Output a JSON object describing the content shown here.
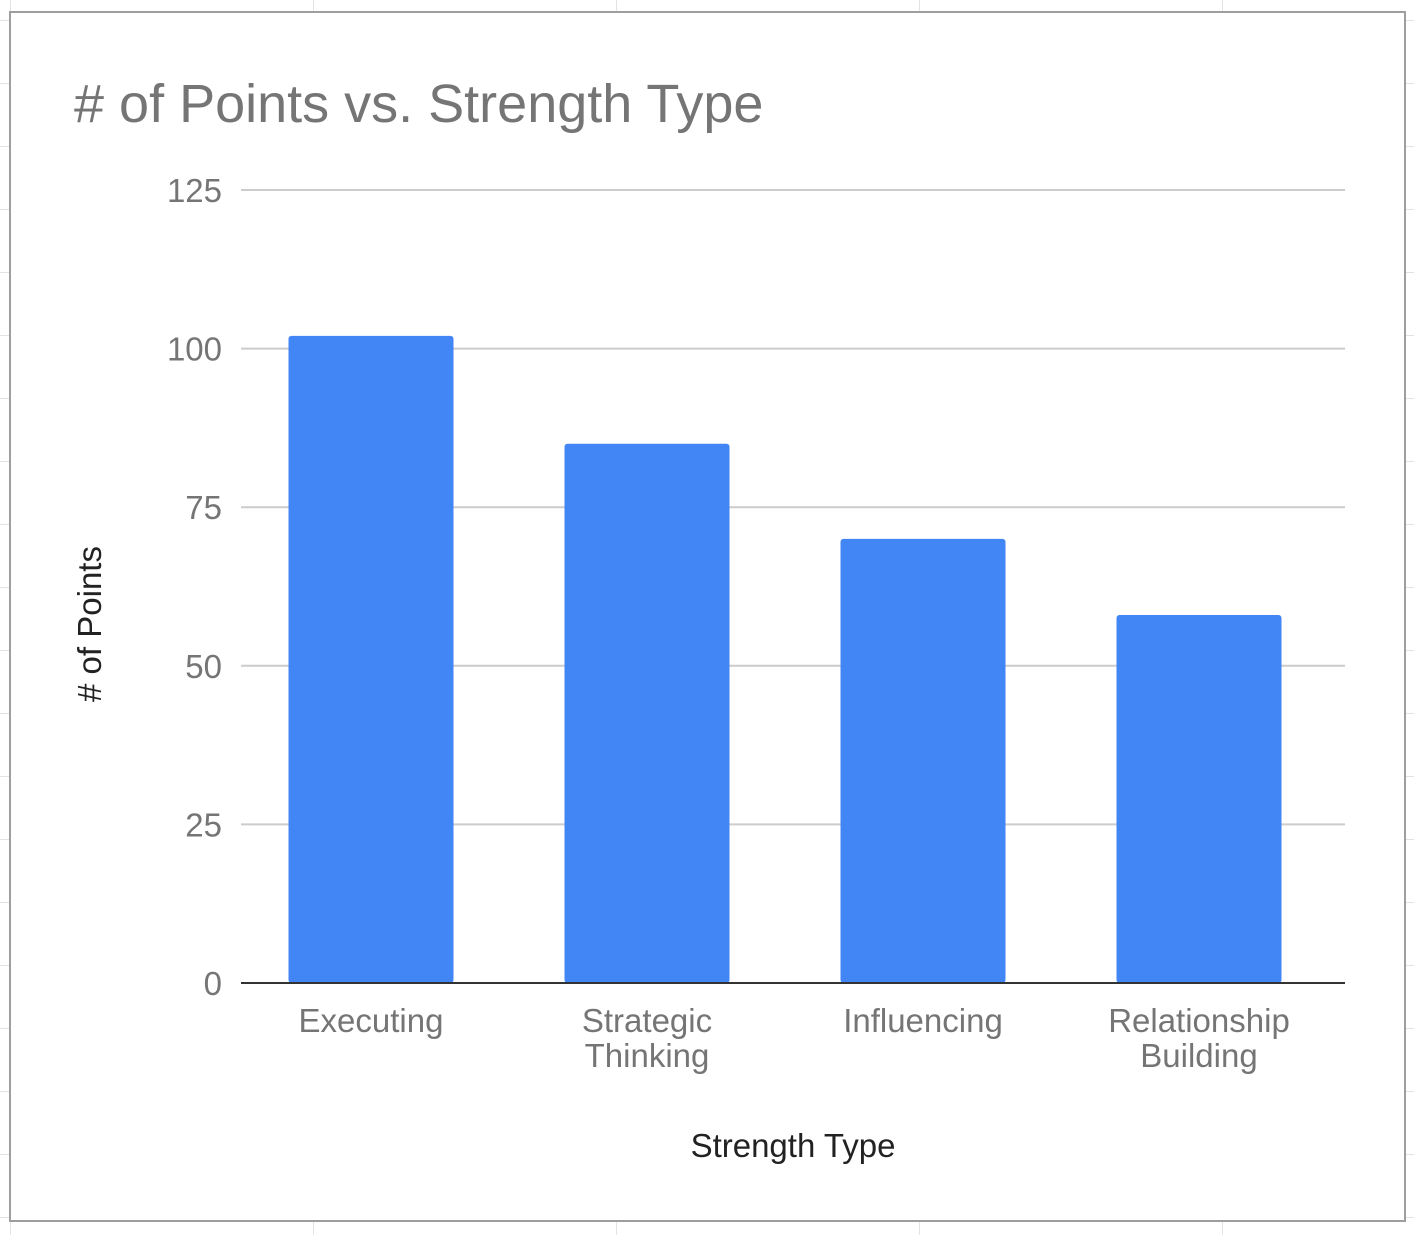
{
  "chart_data": {
    "type": "bar",
    "title": "# of Points vs. Strength Type",
    "xlabel": "Strength Type",
    "ylabel": "# of Points",
    "categories": [
      [
        "Executing"
      ],
      [
        "Strategic",
        "Thinking"
      ],
      [
        "Influencing"
      ],
      [
        "Relationship",
        "Building"
      ]
    ],
    "values": [
      102,
      85,
      70,
      58
    ],
    "ylim": [
      0,
      125
    ],
    "yticks": [
      "0",
      "25",
      "50",
      "75",
      "100",
      "125"
    ],
    "ytick_values": [
      0,
      25,
      50,
      75,
      100,
      125
    ],
    "grid": true,
    "legend": "none",
    "bar_color": "#4285f4",
    "baseline_color": "#333333",
    "grid_color": "#cccccc"
  }
}
